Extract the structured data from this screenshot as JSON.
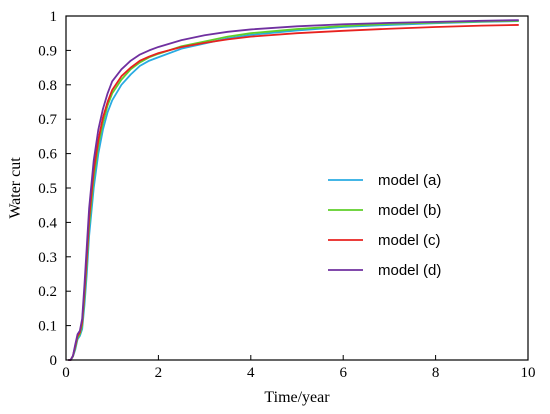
{
  "chart_data": {
    "type": "line",
    "xlabel": "Time/year",
    "ylabel": "Water cut",
    "xlim": [
      0,
      10
    ],
    "ylim": [
      0,
      1
    ],
    "xticks": [
      0,
      2,
      4,
      6,
      8,
      10
    ],
    "yticks": [
      0,
      0.1,
      0.2,
      0.3,
      0.4,
      0.5,
      0.6,
      0.7,
      0.8,
      0.9,
      1
    ],
    "grid": false,
    "legend_position": "right",
    "series": [
      {
        "name": "model (a)",
        "color": "#29abe2",
        "x": [
          0.05,
          0.1,
          0.15,
          0.2,
          0.25,
          0.3,
          0.35,
          0.4,
          0.45,
          0.5,
          0.6,
          0.7,
          0.8,
          0.9,
          1.0,
          1.2,
          1.4,
          1.6,
          1.8,
          2.0,
          2.5,
          3.0,
          3.5,
          4.0,
          5.0,
          6.0,
          7.0,
          8.0,
          9.0,
          9.8
        ],
        "y": [
          0.0,
          0.0,
          0.01,
          0.03,
          0.06,
          0.07,
          0.09,
          0.16,
          0.25,
          0.36,
          0.5,
          0.6,
          0.67,
          0.72,
          0.755,
          0.8,
          0.83,
          0.855,
          0.87,
          0.88,
          0.905,
          0.92,
          0.935,
          0.945,
          0.958,
          0.968,
          0.974,
          0.979,
          0.983,
          0.985
        ]
      },
      {
        "name": "model (b)",
        "color": "#5fcf2a",
        "x": [
          0.05,
          0.1,
          0.15,
          0.2,
          0.25,
          0.3,
          0.35,
          0.4,
          0.45,
          0.5,
          0.6,
          0.7,
          0.8,
          0.9,
          1.0,
          1.2,
          1.4,
          1.6,
          1.8,
          2.0,
          2.5,
          3.0,
          3.5,
          4.0,
          5.0,
          6.0,
          7.0,
          8.0,
          9.0,
          9.8
        ],
        "y": [
          0.0,
          0.0,
          0.01,
          0.035,
          0.065,
          0.075,
          0.1,
          0.18,
          0.28,
          0.39,
          0.53,
          0.625,
          0.69,
          0.74,
          0.775,
          0.815,
          0.845,
          0.865,
          0.88,
          0.89,
          0.912,
          0.926,
          0.94,
          0.95,
          0.962,
          0.971,
          0.977,
          0.981,
          0.984,
          0.986
        ]
      },
      {
        "name": "model (c)",
        "color": "#e8221f",
        "x": [
          0.05,
          0.1,
          0.15,
          0.2,
          0.25,
          0.3,
          0.35,
          0.4,
          0.45,
          0.5,
          0.6,
          0.7,
          0.8,
          0.9,
          1.0,
          1.2,
          1.4,
          1.6,
          1.8,
          2.0,
          2.5,
          3.0,
          3.5,
          4.0,
          5.0,
          6.0,
          7.0,
          8.0,
          9.0,
          9.8
        ],
        "y": [
          0.0,
          0.0,
          0.012,
          0.04,
          0.07,
          0.08,
          0.11,
          0.2,
          0.3,
          0.41,
          0.55,
          0.64,
          0.705,
          0.75,
          0.785,
          0.825,
          0.85,
          0.87,
          0.882,
          0.892,
          0.91,
          0.922,
          0.932,
          0.94,
          0.95,
          0.957,
          0.963,
          0.968,
          0.972,
          0.974
        ]
      },
      {
        "name": "model (d)",
        "color": "#7030a0",
        "x": [
          0.05,
          0.1,
          0.15,
          0.2,
          0.25,
          0.3,
          0.35,
          0.4,
          0.45,
          0.5,
          0.6,
          0.7,
          0.8,
          0.9,
          1.0,
          1.2,
          1.4,
          1.6,
          1.8,
          2.0,
          2.5,
          3.0,
          3.5,
          4.0,
          5.0,
          6.0,
          7.0,
          8.0,
          9.0,
          9.8
        ],
        "y": [
          0.0,
          0.0,
          0.012,
          0.045,
          0.075,
          0.085,
          0.12,
          0.22,
          0.33,
          0.44,
          0.58,
          0.67,
          0.73,
          0.775,
          0.81,
          0.845,
          0.87,
          0.888,
          0.9,
          0.91,
          0.93,
          0.944,
          0.954,
          0.961,
          0.97,
          0.976,
          0.98,
          0.983,
          0.986,
          0.988
        ]
      }
    ]
  }
}
